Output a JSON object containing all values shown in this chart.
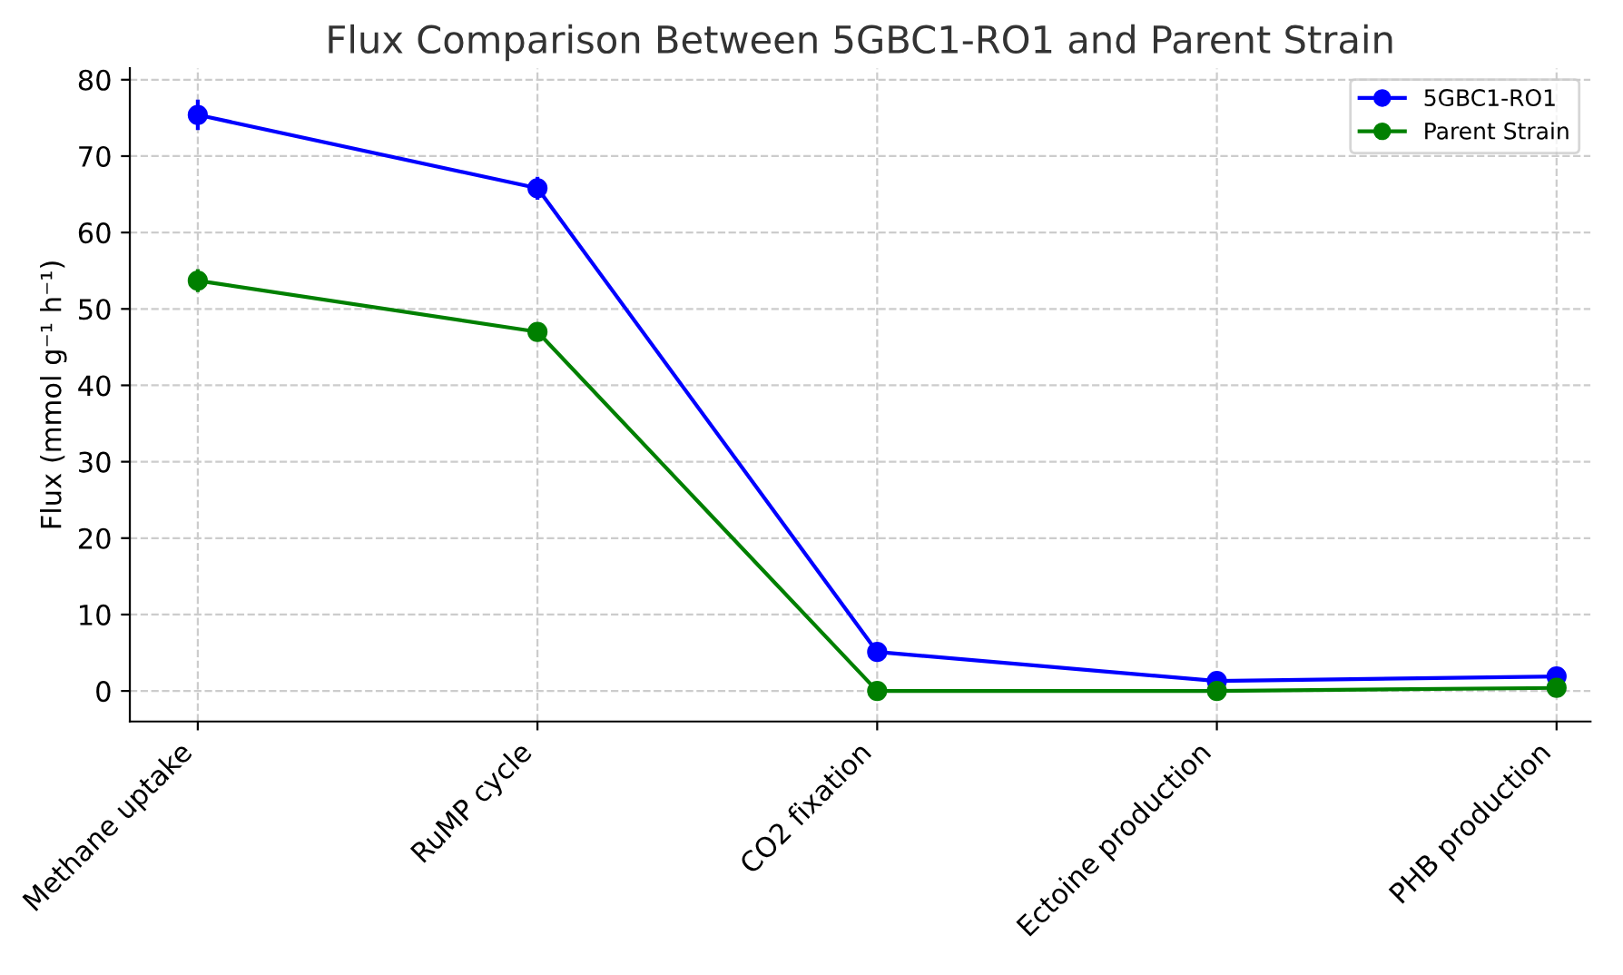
{
  "chart_data": {
    "type": "line",
    "title": "Flux Comparison Between 5GBC1-RO1 and Parent Strain",
    "ylabel": "Flux (mmol g⁻¹ h⁻¹)",
    "categories": [
      "Methane uptake",
      "RuMP cycle",
      "CO2 fixation",
      "Ectoine production",
      "PHB production"
    ],
    "series": [
      {
        "name": "5GBC1-RO1",
        "color": "#0000ff",
        "values": [
          75.4,
          65.8,
          5.1,
          1.3,
          1.9
        ],
        "errors": [
          2,
          1.5,
          null,
          null,
          null
        ]
      },
      {
        "name": "Parent Strain",
        "color": "#008000",
        "values": [
          53.7,
          47.0,
          0,
          0,
          0.4
        ],
        "errors": [
          1.5,
          1.0,
          null,
          null,
          null
        ]
      }
    ],
    "ylim": [
      -4,
      81.5
    ],
    "yticks": [
      0,
      10,
      20,
      30,
      40,
      50,
      60,
      70,
      80
    ],
    "grid": true,
    "legend": "top right",
    "marker": "circle"
  }
}
